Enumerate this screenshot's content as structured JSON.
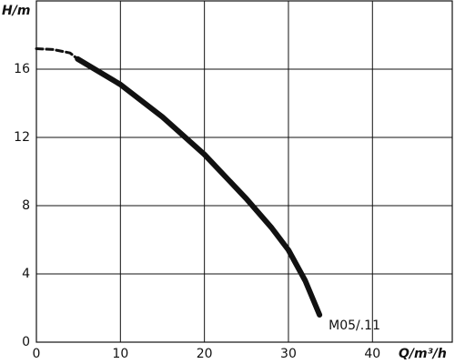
{
  "chart_data": {
    "type": "line",
    "y_label": "H/m",
    "x_label": "Q/m³/h",
    "xlim": [
      0,
      49.5
    ],
    "xticks": [
      0,
      10,
      20,
      30,
      40
    ],
    "ylim": [
      0,
      20
    ],
    "yticks": [
      0,
      4,
      8,
      12,
      16
    ],
    "grid": true,
    "series": [
      {
        "style": "dashed",
        "color": "#111111",
        "x": [
          0,
          2,
          4,
          4.9
        ],
        "values": [
          17.2,
          17.15,
          16.95,
          16.6
        ]
      },
      {
        "name": "M05/.11",
        "style": "solid",
        "color": "#111111",
        "x": [
          4.9,
          10,
          15,
          20,
          25,
          28,
          30,
          32,
          33.7
        ],
        "values": [
          16.6,
          15.1,
          13.2,
          11.0,
          8.4,
          6.7,
          5.4,
          3.6,
          1.6
        ]
      }
    ]
  }
}
